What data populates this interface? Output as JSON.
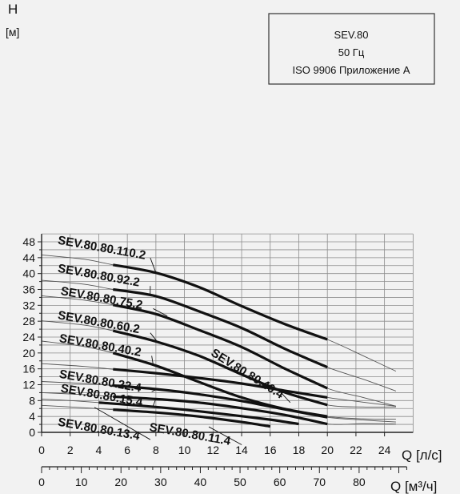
{
  "chart_data": {
    "type": "line",
    "title": "",
    "legend_box": [
      "SEV.80",
      "50 Гц",
      "ISO 9906 Приложение А"
    ],
    "y_axis": {
      "title": "H",
      "unit": "[м]",
      "range": [
        0,
        50
      ],
      "ticks": [
        0,
        4,
        8,
        12,
        16,
        20,
        24,
        28,
        32,
        36,
        40,
        44,
        48
      ]
    },
    "x_axis_primary": {
      "unit": "Q [л/с]",
      "range": [
        0,
        26
      ],
      "ticks": [
        0,
        2,
        4,
        6,
        8,
        10,
        12,
        14,
        16,
        18,
        20,
        22,
        24
      ]
    },
    "x_axis_secondary": {
      "unit": "Q [м³/ч]",
      "ticks": [
        0,
        10,
        20,
        30,
        40,
        50,
        60,
        70,
        80
      ]
    },
    "grid": true,
    "series": [
      {
        "name": "SEV.80.80.110.2",
        "heavy": [
          [
            5,
            42.2
          ],
          [
            8,
            40.2
          ],
          [
            11,
            36.6
          ],
          [
            14,
            31.8
          ],
          [
            17,
            27.3
          ],
          [
            20,
            23.4
          ]
        ],
        "thin": [
          [
            0,
            44.7
          ],
          [
            3,
            43.6
          ],
          [
            5,
            42.2
          ],
          [
            8,
            40.2
          ],
          [
            11,
            36.6
          ],
          [
            14,
            31.8
          ],
          [
            17,
            27.3
          ],
          [
            20,
            23.4
          ],
          [
            22.5,
            19.3
          ],
          [
            24.8,
            15.4
          ]
        ],
        "label_pos": [
          1.1,
          47.5
        ],
        "leader_target": [
          8.0,
          40.2
        ]
      },
      {
        "name": "SEV.80.80.92.2",
        "heavy": [
          [
            5,
            36
          ],
          [
            8,
            34.3
          ],
          [
            11,
            30.5
          ],
          [
            14,
            26.3
          ],
          [
            17,
            21.1
          ],
          [
            20,
            16.4
          ]
        ],
        "thin": [
          [
            0,
            38.3
          ],
          [
            3,
            37.3
          ],
          [
            5,
            36
          ],
          [
            8,
            34.3
          ],
          [
            11,
            30.5
          ],
          [
            14,
            26.3
          ],
          [
            17,
            21.1
          ],
          [
            20,
            16.4
          ],
          [
            22.5,
            13.4
          ],
          [
            24.8,
            10.4
          ]
        ],
        "label_pos": [
          1.1,
          40.4
        ],
        "leader_target": [
          7.6,
          34.7
        ]
      },
      {
        "name": "SEV.80.80.75.2",
        "heavy": [
          [
            5,
            32.1
          ],
          [
            8,
            29.8
          ],
          [
            11,
            25.8
          ],
          [
            14,
            21.5
          ],
          [
            17,
            16.1
          ],
          [
            20,
            11.1
          ]
        ],
        "thin": [
          [
            0,
            34.4
          ],
          [
            3,
            33.3
          ],
          [
            5,
            32.1
          ],
          [
            8,
            29.8
          ],
          [
            11,
            25.8
          ],
          [
            14,
            21.5
          ],
          [
            17,
            16.1
          ],
          [
            20,
            11.1
          ],
          [
            22.5,
            8.8
          ],
          [
            24.8,
            6.6
          ]
        ],
        "label_pos": [
          1.3,
          34.7
        ],
        "leader_target": [
          8.8,
          29.3
        ]
      },
      {
        "name": "SEV.80.80.60.2",
        "heavy": [
          [
            5,
            25.6
          ],
          [
            8,
            22.9
          ],
          [
            11,
            19.3
          ],
          [
            14,
            14.6
          ],
          [
            17,
            10.1
          ],
          [
            20,
            6.9
          ]
        ],
        "thin": [
          [
            0,
            28.1
          ],
          [
            3,
            27.0
          ],
          [
            5,
            25.6
          ],
          [
            8,
            22.9
          ],
          [
            11,
            19.3
          ],
          [
            14,
            14.6
          ],
          [
            17,
            10.1
          ],
          [
            20,
            6.9
          ],
          [
            22.5,
            6.4
          ],
          [
            24.8,
            6.4
          ]
        ],
        "label_pos": [
          1.1,
          28.6
        ],
        "leader_target": [
          8.1,
          22.8
        ]
      },
      {
        "name": "SEV.80.80.40.2",
        "heavy": [
          [
            5,
            20
          ],
          [
            8,
            16.8
          ],
          [
            11,
            12.7
          ],
          [
            14,
            8.8
          ],
          [
            17,
            5.9
          ],
          [
            20,
            4
          ]
        ],
        "thin": [
          [
            0,
            23.0
          ],
          [
            3,
            21.6
          ],
          [
            5,
            20
          ],
          [
            8,
            16.8
          ],
          [
            11,
            12.7
          ],
          [
            14,
            8.8
          ],
          [
            17,
            5.9
          ],
          [
            20,
            4
          ],
          [
            22.5,
            3.4
          ],
          [
            24.8,
            3.3
          ]
        ],
        "label_pos": [
          1.2,
          22.8
        ],
        "leader_target": [
          7.8,
          17.2
        ]
      },
      {
        "name": "SEV.80.80.40.4",
        "heavy": [
          [
            5,
            15.9
          ],
          [
            8,
            14.9
          ],
          [
            11,
            13.7
          ],
          [
            14,
            12.3
          ],
          [
            17,
            10.5
          ],
          [
            20,
            8.8
          ]
        ],
        "thin": [
          [
            0,
            17.3
          ],
          [
            3,
            16.6
          ],
          [
            5,
            15.9
          ],
          [
            8,
            14.9
          ],
          [
            11,
            13.7
          ],
          [
            14,
            12.3
          ],
          [
            17,
            10.5
          ],
          [
            20,
            8.8
          ],
          [
            22.5,
            7.6
          ],
          [
            24.8,
            6.6
          ]
        ],
        "label_pos": [
          11.8,
          19.5
        ],
        "label_rotate": 32,
        "leader_target": [
          16.5,
          11.0
        ]
      },
      {
        "name": "SEV.80.80.22.4",
        "heavy": [
          [
            5,
            11.8
          ],
          [
            8,
            10.9
          ],
          [
            11,
            9.6
          ],
          [
            14,
            7.9
          ],
          [
            17,
            5.8
          ],
          [
            20,
            3.8
          ]
        ],
        "thin": [
          [
            0,
            12.8
          ],
          [
            3,
            12.3
          ],
          [
            5,
            11.8
          ],
          [
            8,
            10.9
          ],
          [
            11,
            9.6
          ],
          [
            14,
            7.9
          ],
          [
            17,
            5.8
          ],
          [
            20,
            3.8
          ],
          [
            22.5,
            3.1
          ],
          [
            24.8,
            2.6
          ]
        ],
        "label_pos": [
          1.2,
          13.8
        ],
        "leader_target": [
          8.2,
          11.0
        ]
      },
      {
        "name": "SEV.80.80.15.4",
        "heavy": [
          [
            5,
            9
          ],
          [
            8,
            8.4
          ],
          [
            11,
            7.5
          ],
          [
            14,
            6.1
          ],
          [
            17,
            4.4
          ],
          [
            20,
            2.1
          ]
        ],
        "thin": [
          [
            0,
            10.0
          ],
          [
            3,
            9.5
          ],
          [
            5,
            9
          ],
          [
            8,
            8.4
          ],
          [
            11,
            7.5
          ],
          [
            14,
            6.1
          ],
          [
            17,
            4.4
          ],
          [
            20,
            2.1
          ],
          [
            22.5,
            2.2
          ],
          [
            24.8,
            2.1
          ]
        ],
        "label_pos": [
          1.3,
          10.2
        ],
        "leader_target": [
          8.0,
          8.5
        ]
      },
      {
        "name": "SEV.80.80.13.4",
        "heavy": [
          [
            4,
            7.5
          ],
          [
            7,
            6.7
          ],
          [
            10,
            5.7
          ],
          [
            13,
            4.5
          ],
          [
            16,
            3.2
          ],
          [
            18,
            2.1
          ]
        ],
        "thin": [
          [
            0,
            8.4
          ],
          [
            2,
            8.0
          ],
          [
            4,
            7.5
          ],
          [
            7,
            6.7
          ],
          [
            10,
            5.7
          ],
          [
            13,
            4.5
          ],
          [
            16,
            3.2
          ],
          [
            18,
            2.1
          ]
        ],
        "label_pos": [
          1.1,
          1.7
        ],
        "leader_target": [
          3.7,
          6.3
        ]
      },
      {
        "name": "SEV.80.80.11.4",
        "heavy": [
          [
            5,
            5.7
          ],
          [
            8,
            5
          ],
          [
            11,
            4
          ],
          [
            14,
            2.6
          ],
          [
            16,
            1.5
          ]
        ],
        "thin": [
          [
            0,
            6.8
          ],
          [
            3,
            6.2
          ],
          [
            5,
            5.7
          ],
          [
            8,
            5
          ],
          [
            11,
            4
          ],
          [
            14,
            2.6
          ],
          [
            16,
            1.5
          ]
        ],
        "label_pos": [
          7.5,
          0.4
        ],
        "leader_target": [
          11.7,
          1.4
        ]
      }
    ]
  }
}
